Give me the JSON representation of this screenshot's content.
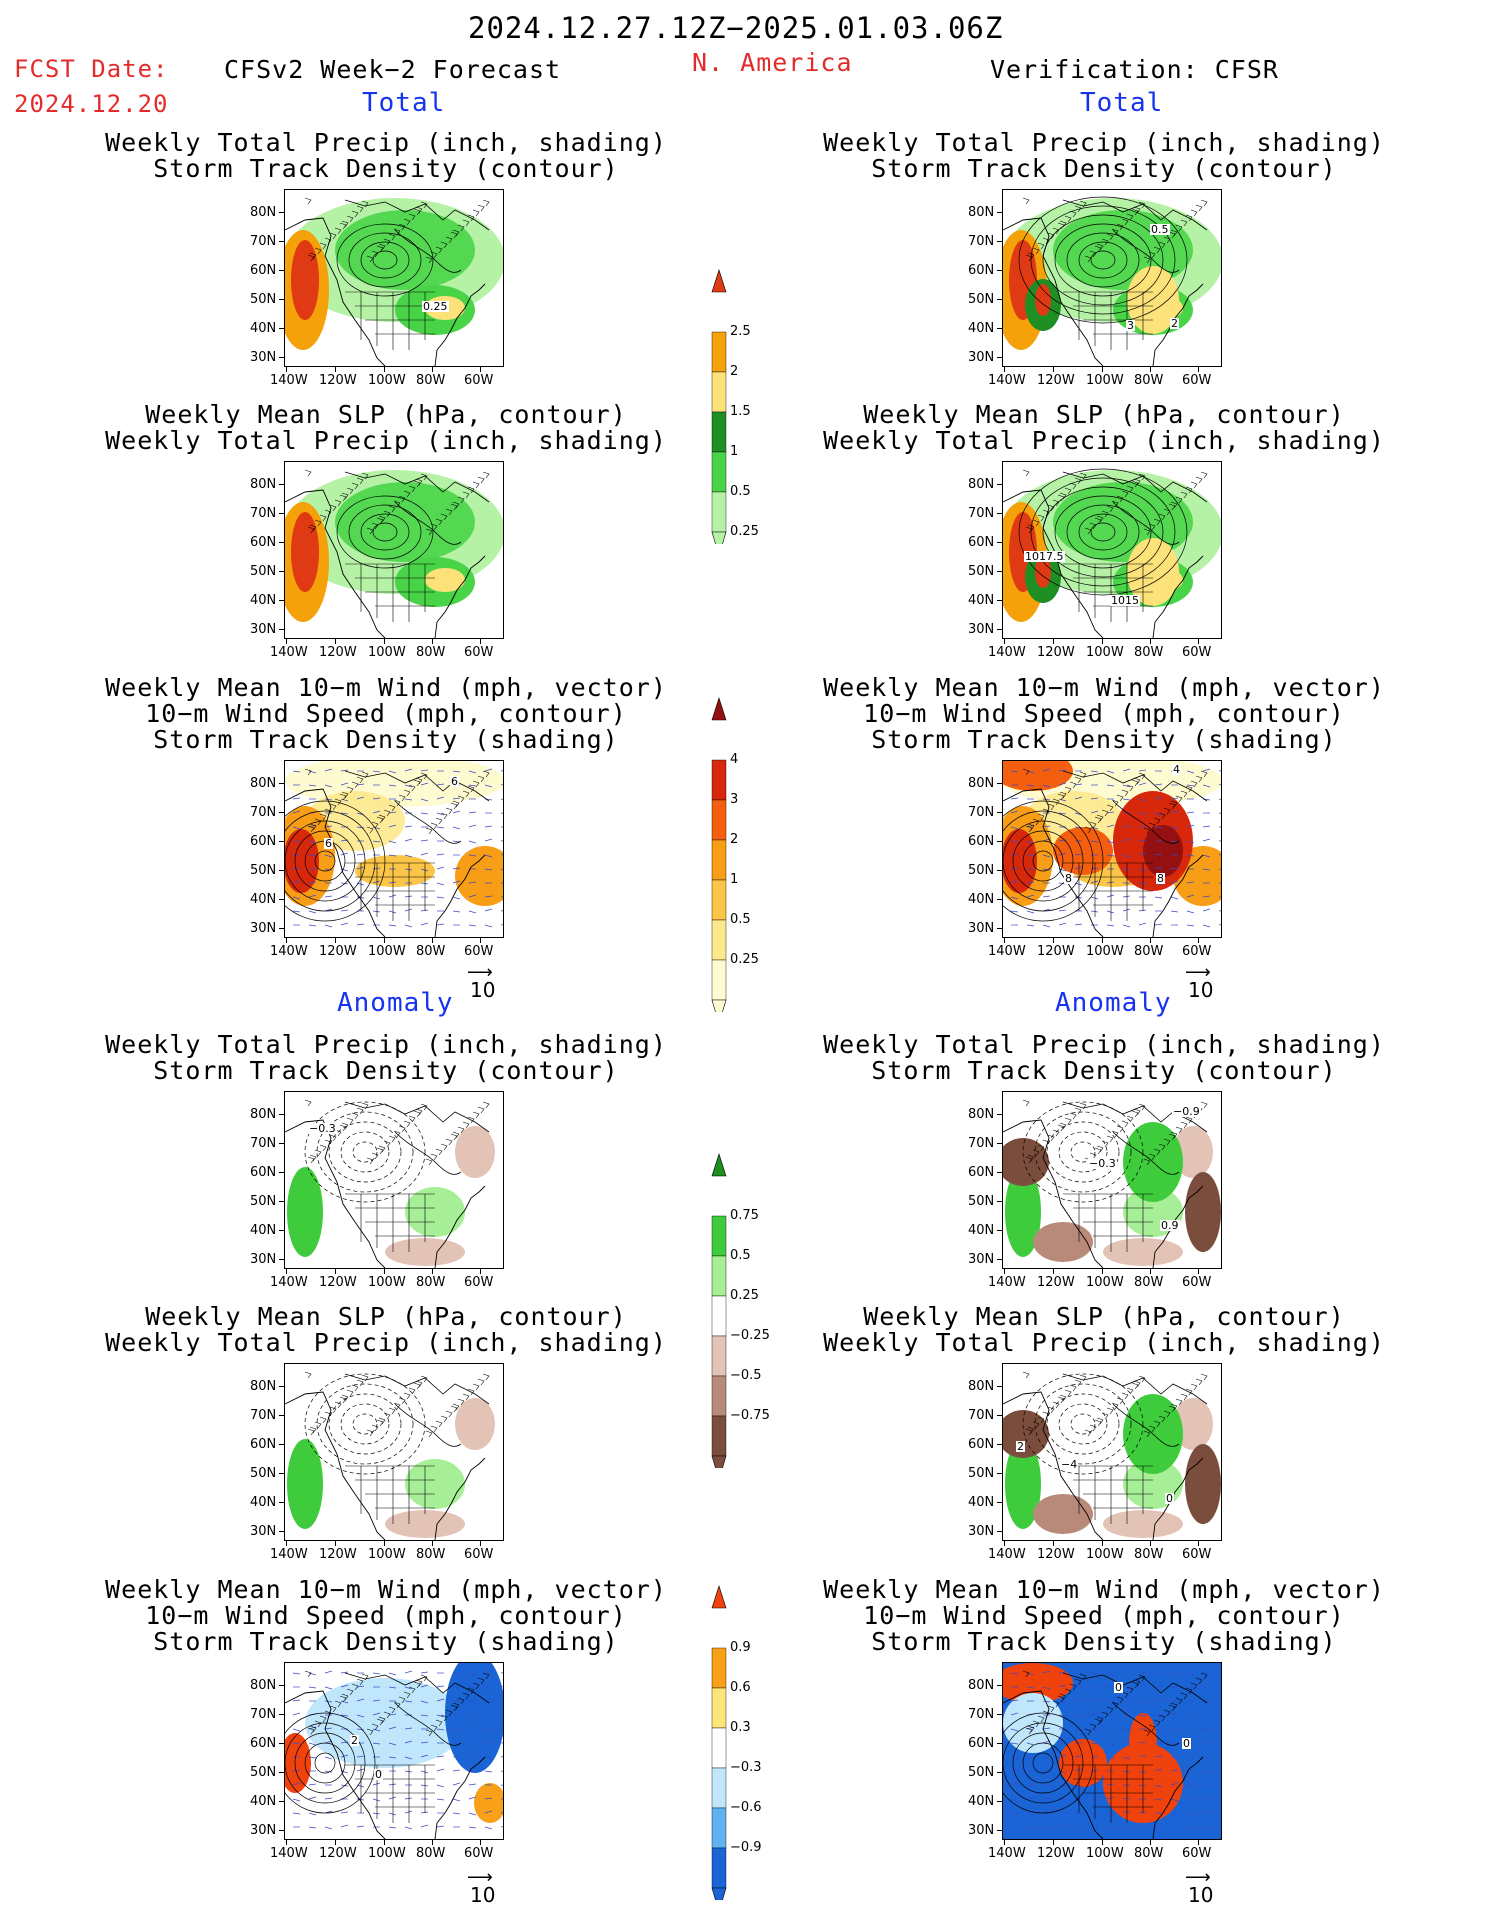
{
  "header": {
    "date_range": "2024.12.27.12Z−2025.01.03.06Z",
    "fcst_label": "FCST Date:",
    "fcst_date": "2024.12.20",
    "left_title": "CFSv2 Week−2 Forecast",
    "region": "N. America",
    "right_title": "Verification: CFSR"
  },
  "sections": {
    "total": "Total",
    "anomaly": "Anomaly"
  },
  "panel_titles": {
    "precip_storm": [
      "Weekly Total Precip (inch, shading)",
      "Storm Track Density (contour)"
    ],
    "slp_precip": [
      "Weekly Mean SLP (hPa, contour)",
      "Weekly Total Precip (inch, shading)"
    ],
    "wind_storm": [
      "Weekly Mean 10−m Wind (mph, vector)",
      "10−m Wind Speed (mph, contour)",
      "Storm Track Density (shading)"
    ]
  },
  "axes": {
    "lat_labels": [
      "80N",
      "70N",
      "60N",
      "50N",
      "40N",
      "30N"
    ],
    "lon_labels": [
      "140W",
      "120W",
      "100W",
      "80W",
      "60W"
    ]
  },
  "vector_ref": "10",
  "contour_labels": {
    "r1_fcst": "0.25",
    "r1_ver": [
      "0.5",
      "3",
      "2"
    ],
    "r2_ver": [
      "1017.5",
      "1015"
    ],
    "r3_fcst": [
      "6",
      "6"
    ],
    "r3_ver": [
      "4",
      "8",
      "8"
    ],
    "a1_fcst": "−0.3",
    "a1_ver": [
      "−0.9",
      "−0.3",
      "0.9"
    ],
    "a2_ver": [
      "2",
      "−4",
      "0"
    ],
    "a3_fcst": [
      "2",
      "0"
    ],
    "a3_ver": [
      "0",
      "0"
    ]
  },
  "colorbars": {
    "precip_total": {
      "labels": [
        "2.5",
        "2",
        "1.5",
        "1",
        "0.5",
        "0.25"
      ],
      "colors": [
        "#e03a14",
        "#f5a10a",
        "#fde27a",
        "#1f8f24",
        "#49d448",
        "#b5f2a6"
      ]
    },
    "storm_total": {
      "labels": [
        "4",
        "3",
        "2",
        "1",
        "0.5",
        "0.25"
      ],
      "colors": [
        "#951010",
        "#d8280c",
        "#f35f0e",
        "#f79d16",
        "#fbc548",
        "#fde98c",
        "#fffbd0"
      ]
    },
    "precip_anom": {
      "labels": [
        "0.75",
        "0.5",
        "0.25",
        "−0.25",
        "−0.5",
        "−0.75"
      ],
      "colors": [
        "#1b8f1f",
        "#3fcc3c",
        "#a6ef96",
        "#ffffff",
        "#e2c3b6",
        "#b88a7a",
        "#7a4d3c"
      ]
    },
    "storm_anom": {
      "labels": [
        "0.9",
        "0.6",
        "0.3",
        "−0.3",
        "−0.6",
        "−0.9"
      ],
      "colors": [
        "#f0420c",
        "#f8a018",
        "#fde57a",
        "#ffffff",
        "#bfe6fb",
        "#60b2f0",
        "#1a64d6"
      ]
    }
  }
}
